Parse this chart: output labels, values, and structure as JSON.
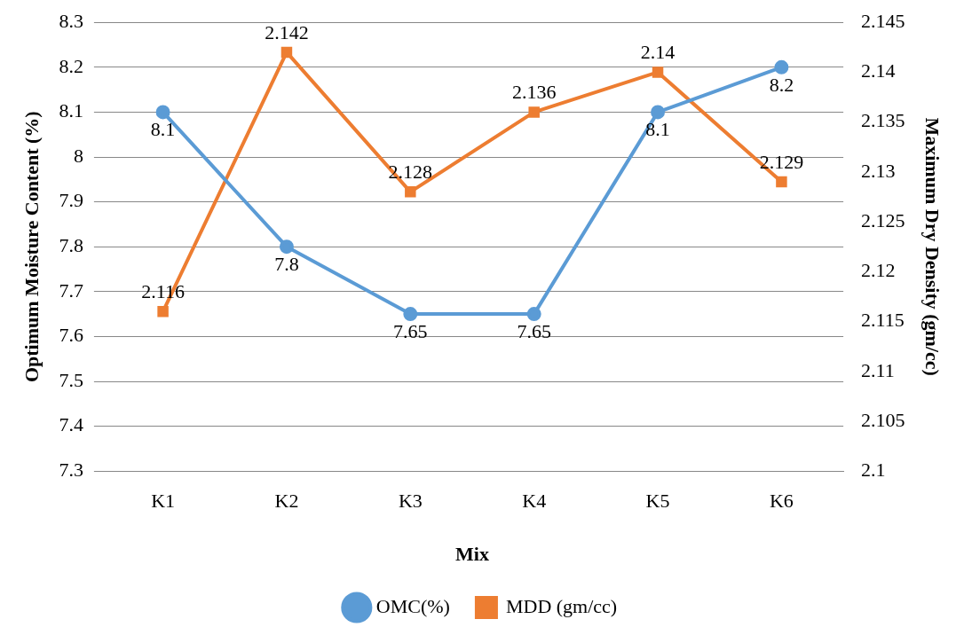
{
  "chart_data": {
    "type": "line",
    "xlabel": "Mix",
    "ylabel": "Optimum Moisture Content (%)",
    "y2label": "Maximum Dry Density (gm/cc)",
    "categories": [
      "K1",
      "K2",
      "K3",
      "K4",
      "K5",
      "K6"
    ],
    "series": [
      {
        "name": "OMC(%)",
        "color": "#5b9bd5",
        "values": [
          8.1,
          7.8,
          7.65,
          7.65,
          8.1,
          8.2
        ]
      },
      {
        "name": "MDD (gm/cc)",
        "color": "#ed7d31",
        "values": [
          2.116,
          2.142,
          2.128,
          2.136,
          2.14,
          2.129
        ],
        "axis": "y2",
        "marker": "square"
      }
    ],
    "ylim": [
      7.3,
      8.3
    ],
    "yticks": [
      7.3,
      7.4,
      7.5,
      7.6,
      7.7,
      7.8,
      7.9,
      8,
      8.1,
      8.2,
      8.3
    ],
    "y2lim": [
      2.1,
      2.145
    ],
    "y2ticks": [
      2.1,
      2.105,
      2.11,
      2.115,
      2.12,
      2.125,
      2.13,
      2.135,
      2.14,
      2.145
    ],
    "grid": "y",
    "legend": "bottom",
    "marker": "circle",
    "line_style": "solid",
    "data_labels": true
  }
}
